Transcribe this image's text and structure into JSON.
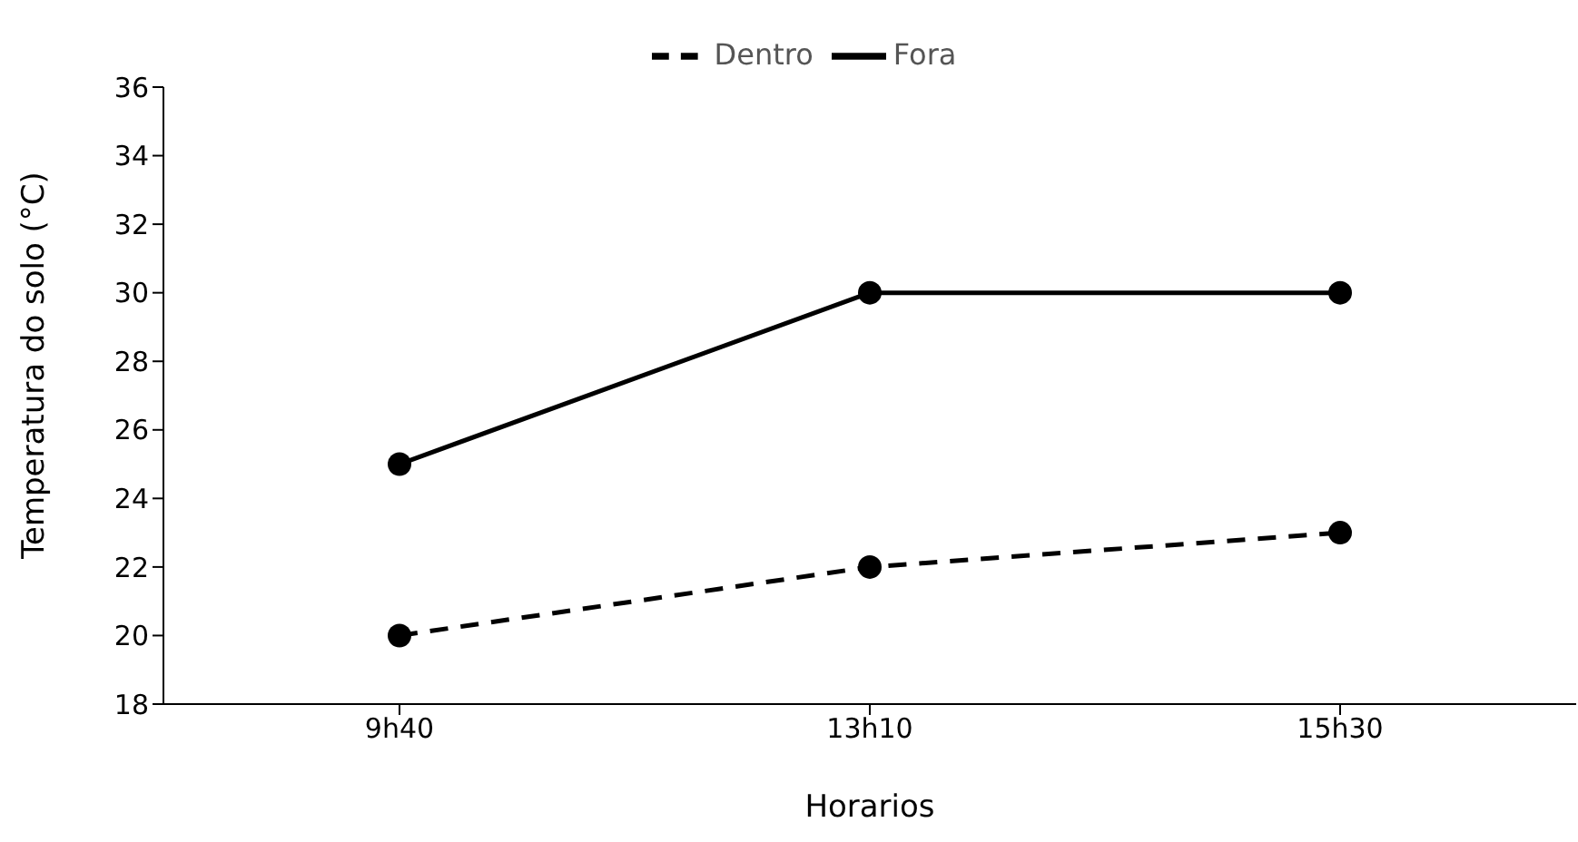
{
  "chart_data": {
    "type": "line",
    "xlabel": "Horarios",
    "ylabel": "Temperatura do solo (°C)",
    "categories": [
      "9h40",
      "13h10",
      "15h30"
    ],
    "series": [
      {
        "name": "Dentro",
        "color": "#000000",
        "values": [
          20,
          22,
          23
        ],
        "line_style": "dashed"
      },
      {
        "name": "Fora",
        "color": "#000000",
        "values": [
          25,
          30,
          30
        ],
        "line_style": "solid"
      }
    ],
    "ylim": [
      18,
      36
    ],
    "yticks": [
      18,
      20,
      22,
      24,
      26,
      28,
      30,
      32,
      34,
      36
    ],
    "grid": false,
    "legend": "top",
    "marker": "circle"
  }
}
